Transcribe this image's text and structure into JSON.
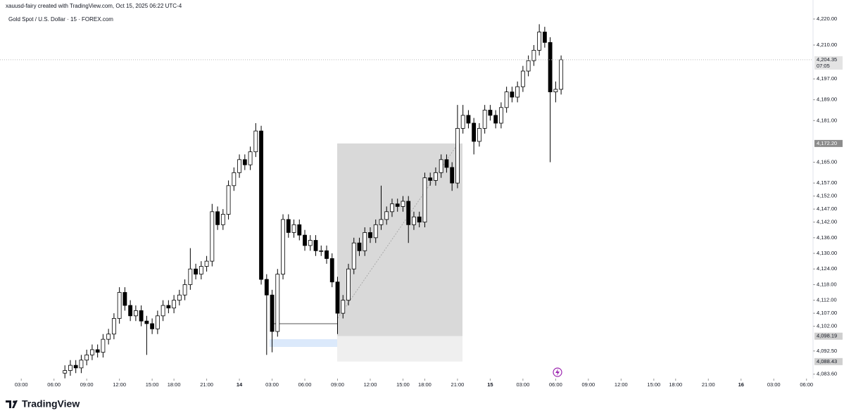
{
  "header": "xauusd-fairy created with TradingView.com, Oct 15, 2025 06:22 UTC-4",
  "brand": "TradingView",
  "chart_data": {
    "type": "candlestick",
    "title": "Gold Spot / U.S. Dollar · 15 · FOREX.com",
    "up_color": "#ffffff",
    "down_color": "#000000",
    "wick_color": "#000000",
    "x": [
      8,
      9,
      10,
      11,
      12,
      13,
      14,
      15,
      16,
      17,
      18,
      19,
      20,
      21,
      22,
      23,
      24,
      25,
      26,
      27,
      28,
      29,
      30,
      31,
      32,
      33,
      34,
      35,
      36,
      37,
      38,
      39,
      40,
      41,
      42,
      43,
      44,
      45,
      46,
      47,
      48,
      49,
      50,
      51,
      52,
      53,
      54,
      55,
      56,
      57,
      58,
      59,
      60,
      61,
      62,
      63,
      64,
      65,
      66,
      67,
      68,
      69,
      70,
      71,
      72,
      73,
      74,
      75,
      76,
      77,
      78,
      79,
      80,
      81,
      82,
      83,
      84,
      85,
      86,
      87,
      88,
      89,
      90,
      91,
      92,
      93,
      94,
      95,
      96,
      97,
      98,
      99
    ],
    "open": [
      4084,
      4085,
      4087,
      4086,
      4089,
      4091,
      4093,
      4092,
      4097,
      4099,
      4105,
      4115,
      4110,
      4106,
      4108,
      4104,
      4103,
      4101,
      4106,
      4110,
      4109,
      4112,
      4114,
      4118,
      4124,
      4122,
      4125,
      4127,
      4146,
      4141,
      4145,
      4156,
      4161,
      4166,
      4164,
      4169,
      4177,
      4120,
      4114,
      4100,
      4122,
      4143,
      4138,
      4141,
      4137,
      4133,
      4135,
      4131,
      4131,
      4128,
      4119,
      4107,
      4112,
      4124,
      4134,
      4131,
      4138,
      4136,
      4141,
      4143,
      4146,
      4149,
      4148,
      4150,
      4141,
      4144,
      4142,
      4159,
      4158,
      4161,
      4166,
      4163,
      4157,
      4178,
      4183,
      4180,
      4173,
      4178,
      4185,
      4183,
      4180,
      4186,
      4192,
      4190,
      4194,
      4200,
      4204,
      4208,
      4215,
      4211,
      4192,
      4193
    ],
    "high": [
      4087,
      4089,
      4089,
      4091,
      4093,
      4095,
      4095,
      4099,
      4101,
      4107,
      4117,
      4117,
      4112,
      4110,
      4110,
      4106,
      4105,
      4108,
      4112,
      4112,
      4114,
      4116,
      4120,
      4132,
      4126,
      4127,
      4129,
      4149,
      4148,
      4147,
      4158,
      4163,
      4168,
      4168,
      4171,
      4180,
      4179,
      4122,
      4116,
      4124,
      4145,
      4145,
      4143,
      4143,
      4139,
      4137,
      4137,
      4133,
      4133,
      4130,
      4121,
      4114,
      4126,
      4136,
      4136,
      4140,
      4140,
      4143,
      4156,
      4148,
      4151,
      4151,
      4152,
      4152,
      4146,
      4146,
      4161,
      4161,
      4163,
      4168,
      4168,
      4165,
      4187,
      4187,
      4185,
      4182,
      4180,
      4187,
      4187,
      4185,
      4188,
      4194,
      4194,
      4196,
      4202,
      4206,
      4210,
      4218,
      4217,
      4213,
      4196,
      4206
    ],
    "low": [
      4082,
      4083,
      4084,
      4084,
      4087,
      4089,
      4090,
      4090,
      4095,
      4097,
      4103,
      4108,
      4104,
      4104,
      4102,
      4091,
      4099,
      4099,
      4104,
      4107,
      4107,
      4110,
      4112,
      4116,
      4120,
      4120,
      4123,
      4125,
      4139,
      4139,
      4143,
      4154,
      4159,
      4162,
      4162,
      4167,
      4118,
      4091,
      4092,
      4098,
      4120,
      4136,
      4136,
      4135,
      4131,
      4131,
      4129,
      4129,
      4126,
      4117,
      4099,
      4105,
      4110,
      4122,
      4129,
      4129,
      4134,
      4134,
      4139,
      4141,
      4144,
      4146,
      4146,
      4134,
      4139,
      4140,
      4140,
      4156,
      4156,
      4159,
      4161,
      4154,
      4155,
      4176,
      4178,
      4168,
      4171,
      4176,
      4181,
      4178,
      4178,
      4184,
      4188,
      4188,
      4192,
      4198,
      4202,
      4206,
      4209,
      4165,
      4188,
      4191
    ],
    "close": [
      4085,
      4087,
      4086,
      4089,
      4091,
      4093,
      4092,
      4097,
      4099,
      4105,
      4115,
      4110,
      4106,
      4108,
      4104,
      4103,
      4101,
      4106,
      4110,
      4109,
      4112,
      4114,
      4118,
      4124,
      4122,
      4125,
      4127,
      4146,
      4141,
      4145,
      4156,
      4161,
      4166,
      4164,
      4169,
      4177,
      4120,
      4114,
      4100,
      4122,
      4143,
      4138,
      4141,
      4137,
      4133,
      4135,
      4131,
      4131,
      4128,
      4119,
      4107,
      4112,
      4124,
      4134,
      4131,
      4138,
      4136,
      4141,
      4143,
      4146,
      4149,
      4148,
      4150,
      4141,
      4144,
      4142,
      4159,
      4158,
      4161,
      4166,
      4163,
      4157,
      4178,
      4183,
      4180,
      4173,
      4178,
      4185,
      4183,
      4180,
      4186,
      4192,
      4190,
      4194,
      4200,
      4204,
      4208,
      4215,
      4211,
      4192,
      4193,
      4204.35
    ],
    "xlim": [
      -3.9,
      145.2
    ],
    "ylim": [
      4081.9,
      4227.3
    ],
    "xticks": [
      {
        "value": 0,
        "label": "03:00"
      },
      {
        "value": 6,
        "label": "06:00"
      },
      {
        "value": 12,
        "label": "09:00"
      },
      {
        "value": 18,
        "label": "12:00"
      },
      {
        "value": 24,
        "label": "15:00"
      },
      {
        "value": 28,
        "label": "18:00"
      },
      {
        "value": 34,
        "label": "21:00"
      },
      {
        "value": 40,
        "label": "14"
      },
      {
        "value": 46,
        "label": "03:00"
      },
      {
        "value": 52,
        "label": "06:00"
      },
      {
        "value": 58,
        "label": "09:00"
      },
      {
        "value": 64,
        "label": "12:00"
      },
      {
        "value": 70,
        "label": "15:00"
      },
      {
        "value": 74,
        "label": "18:00"
      },
      {
        "value": 80,
        "label": "21:00"
      },
      {
        "value": 86,
        "label": "15"
      },
      {
        "value": 92,
        "label": "03:00"
      },
      {
        "value": 98,
        "label": "06:00"
      },
      {
        "value": 104,
        "label": "09:00"
      },
      {
        "value": 110,
        "label": "12:00"
      },
      {
        "value": 116,
        "label": "15:00"
      },
      {
        "value": 120,
        "label": "18:00"
      },
      {
        "value": 126,
        "label": "21:00"
      },
      {
        "value": 132,
        "label": "16"
      },
      {
        "value": 138,
        "label": "03:00"
      },
      {
        "value": 144,
        "label": "06:00"
      }
    ],
    "yticks": [
      {
        "value": 4220,
        "label": "4,220.00"
      },
      {
        "value": 4210,
        "label": "4,210.00"
      },
      {
        "value": 4197,
        "label": "4,197.00"
      },
      {
        "value": 4189,
        "label": "4,189.00"
      },
      {
        "value": 4181,
        "label": "4,181.00"
      },
      {
        "value": 4165,
        "label": "4,165.00"
      },
      {
        "value": 4157,
        "label": "4,157.00"
      },
      {
        "value": 4152,
        "label": "4,152.00"
      },
      {
        "value": 4147,
        "label": "4,147.00"
      },
      {
        "value": 4142,
        "label": "4,142.00"
      },
      {
        "value": 4136,
        "label": "4,136.00"
      },
      {
        "value": 4130,
        "label": "4,130.00"
      },
      {
        "value": 4124,
        "label": "4,124.00"
      },
      {
        "value": 4118,
        "label": "4,118.00"
      },
      {
        "value": 4112,
        "label": "4,112.00"
      },
      {
        "value": 4107,
        "label": "4,107.00"
      },
      {
        "value": 4102,
        "label": "4,102.00"
      },
      {
        "value": 4092.5,
        "label": "4,092.50"
      },
      {
        "value": 4083.6,
        "label": "4,083.60"
      }
    ],
    "last_price": {
      "value": 4204.35,
      "label": "4,204.35"
    },
    "countdown": "07:05",
    "position": {
      "target": {
        "value": 4172.2,
        "label": "4,172.20"
      },
      "entry": {
        "value": 4098.19,
        "label": "4,098.19"
      },
      "stop": {
        "value": 4088.43,
        "label": "4,088.43"
      }
    }
  }
}
